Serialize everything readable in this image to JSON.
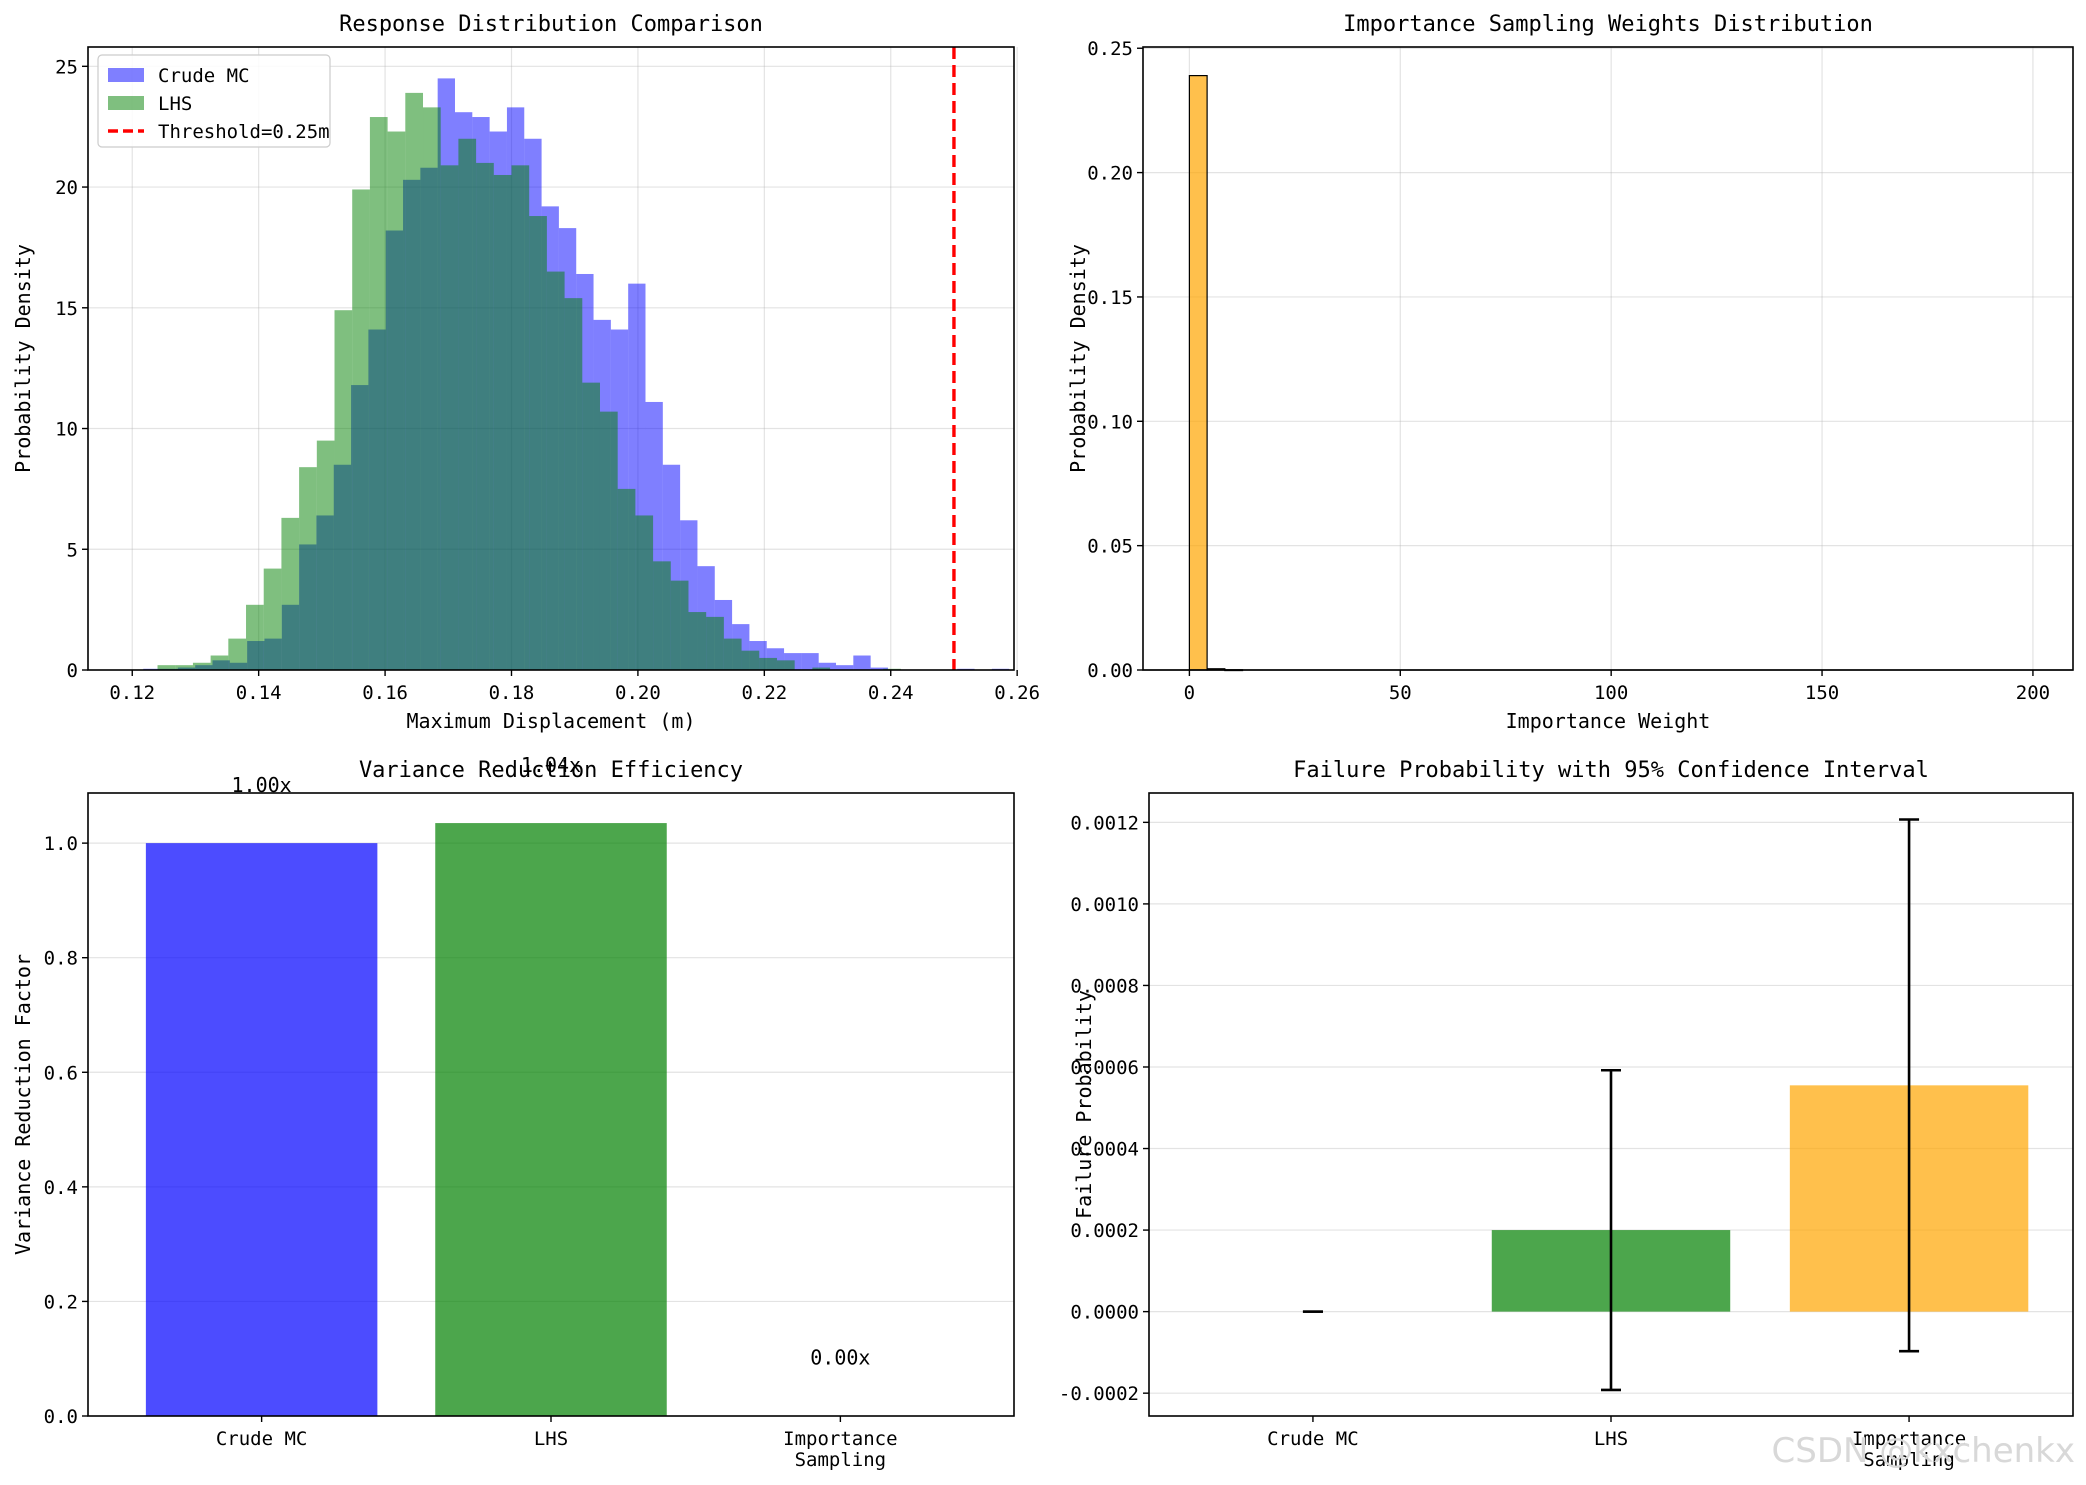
{
  "watermark": "CSDN @kxchenkx",
  "chart_data": [
    {
      "id": "hist",
      "type": "bar",
      "title": "Response Distribution Comparison",
      "xlabel": "Maximum Displacement (m)",
      "ylabel": "Probability Density",
      "xlim": [
        0.113,
        0.2595
      ],
      "ylim": [
        0,
        25.8
      ],
      "xticks": [
        0.12,
        0.14,
        0.16,
        0.18,
        0.2,
        0.22,
        0.24,
        0.26
      ],
      "xtick_labels": [
        "0.12",
        "0.14",
        "0.16",
        "0.18",
        "0.20",
        "0.22",
        "0.24",
        "0.26"
      ],
      "yticks": [
        0,
        5,
        10,
        15,
        20,
        25
      ],
      "ytick_labels": [
        "0",
        "5",
        "10",
        "15",
        "20",
        "25"
      ],
      "grid": true,
      "legend_position": "top-left",
      "series": [
        {
          "name": "Crude MC",
          "color": "#0000ff",
          "alpha": 0.5,
          "bin_start": 0.119,
          "bin_width": 0.00274,
          "values": [
            0.0,
            0.05,
            0.05,
            0.1,
            0.2,
            0.4,
            0.3,
            1.2,
            1.3,
            2.7,
            5.2,
            6.4,
            8.5,
            11.8,
            14.1,
            18.2,
            20.3,
            20.8,
            24.5,
            23.1,
            22.9,
            22.3,
            23.3,
            22.0,
            19.2,
            18.3,
            16.4,
            14.5,
            14.1,
            16.0,
            11.1,
            8.5,
            6.2,
            4.3,
            2.9,
            1.9,
            1.2,
            0.9,
            0.7,
            0.7,
            0.3,
            0.2,
            0.6,
            0.1,
            0.0,
            0.0,
            0.0,
            0.0,
            0.05,
            0.0,
            0.05
          ]
        },
        {
          "name": "LHS",
          "color": "#008000",
          "alpha": 0.5,
          "bin_start": 0.124,
          "bin_width": 0.0028,
          "values": [
            0.2,
            0.2,
            0.3,
            0.6,
            1.3,
            2.7,
            4.2,
            6.3,
            8.4,
            9.5,
            14.9,
            19.9,
            22.9,
            22.3,
            23.9,
            23.3,
            20.9,
            22.0,
            21.0,
            20.5,
            20.9,
            18.8,
            16.5,
            15.4,
            11.9,
            10.7,
            7.5,
            6.4,
            4.5,
            3.7,
            2.4,
            2.2,
            1.3,
            0.8,
            0.5,
            0.4,
            0.0,
            0.1,
            0.0,
            0.0,
            0.0,
            0.05
          ]
        }
      ],
      "reference_line": {
        "name": "Threshold=0.25m",
        "x": 0.25,
        "color": "#ff0000"
      }
    },
    {
      "id": "weights",
      "type": "bar",
      "title": "Importance Sampling Weights Distribution",
      "xlabel": "Importance Weight",
      "ylabel": "Probability Density",
      "xlim": [
        -11,
        209.5
      ],
      "ylim": [
        0,
        0.2505
      ],
      "xticks": [
        0,
        50,
        100,
        150,
        200
      ],
      "xtick_labels": [
        "0",
        "50",
        "100",
        "150",
        "200"
      ],
      "yticks": [
        0,
        0.05,
        0.1,
        0.15,
        0.2,
        0.25
      ],
      "ytick_labels": [
        "0.00",
        "0.05",
        "0.10",
        "0.15",
        "0.20",
        "0.25"
      ],
      "grid": true,
      "color": "#ffa500",
      "bin_width": 4.2,
      "bins": [
        {
          "x0": 0.0,
          "value": 0.239
        },
        {
          "x0": 4.2,
          "value": 0.0005
        },
        {
          "x0": 8.4,
          "value": 0.0001
        }
      ]
    },
    {
      "id": "variance",
      "type": "bar",
      "title": "Variance Reduction Efficiency",
      "xlabel": "",
      "ylabel": "Variance Reduction Factor",
      "ylim": [
        0,
        1.0875
      ],
      "yticks": [
        0,
        0.2,
        0.4,
        0.6,
        0.8,
        1.0
      ],
      "ytick_labels": [
        "0.0",
        "0.2",
        "0.4",
        "0.6",
        "0.8",
        "1.0"
      ],
      "grid": true,
      "categories": [
        "Crude MC",
        "LHS",
        "Importance\nSampling"
      ],
      "values": [
        1.0,
        1.035,
        0.0
      ],
      "colors": [
        "#0000ff",
        "#008000",
        "#ffa500"
      ],
      "value_labels": [
        "1.00x",
        "1.04x",
        "0.00x"
      ],
      "value_label_y": [
        1.1,
        1.135,
        0.1
      ]
    },
    {
      "id": "failure",
      "type": "bar",
      "title": "Failure Probability with 95% Confidence Interval",
      "xlabel": "",
      "ylabel": "Failure Probability",
      "ylim": [
        -0.000256,
        0.001272
      ],
      "yticks": [
        -0.0002,
        0.0,
        0.0002,
        0.0004,
        0.0006,
        0.0008,
        0.001,
        0.0012
      ],
      "ytick_labels": [
        "-0.0002",
        "0.0000",
        "0.0002",
        "0.0004",
        "0.0006",
        "0.0008",
        "0.0010",
        "0.0012"
      ],
      "grid": true,
      "categories": [
        "Crude MC",
        "LHS",
        "Importance\nSampling"
      ],
      "values": [
        0.0,
        0.0002,
        0.000555
      ],
      "ci_low": [
        0.0,
        -0.000192,
        -9.7e-05
      ],
      "ci_high": [
        0.0,
        0.000592,
        0.001207
      ],
      "colors": [
        "#0000ff",
        "#008000",
        "#ffa500"
      ]
    }
  ]
}
